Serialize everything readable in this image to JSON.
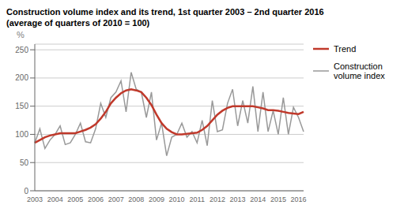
{
  "chart_data": {
    "type": "line",
    "title": "Construction volume index and its trend, 1st quarter 2003 – 2nd quarter 2016",
    "subtitle": "(average of quarters of 2010 = 100)",
    "y_label": "%",
    "categories": [
      "2003",
      null,
      null,
      null,
      "2004",
      null,
      null,
      null,
      "2005",
      null,
      null,
      null,
      "2006",
      null,
      null,
      null,
      "2007",
      null,
      null,
      null,
      "2008",
      null,
      null,
      null,
      "2009",
      null,
      null,
      null,
      "2010",
      null,
      null,
      null,
      "2011",
      null,
      null,
      null,
      "2012",
      null,
      null,
      null,
      "2013",
      null,
      null,
      null,
      "2014",
      null,
      null,
      null,
      "2015",
      null,
      null,
      null,
      "2016",
      null
    ],
    "series": [
      {
        "name": "Trend",
        "color": "#c0392b",
        "values": [
          85,
          90,
          95,
          98,
          100,
          102,
          102,
          102,
          102,
          105,
          108,
          112,
          118,
          128,
          140,
          155,
          165,
          173,
          178,
          180,
          178,
          175,
          165,
          152,
          135,
          120,
          110,
          104,
          100,
          100,
          101,
          102,
          103,
          108,
          115,
          125,
          135,
          142,
          147,
          150,
          150,
          150,
          150,
          150,
          148,
          146,
          143,
          143,
          142,
          140,
          138,
          137,
          136,
          140
        ]
      },
      {
        "name": "Construction\nvolume index",
        "color": "#999999",
        "values": [
          85,
          110,
          75,
          90,
          100,
          115,
          82,
          85,
          100,
          120,
          87,
          85,
          110,
          155,
          130,
          165,
          175,
          195,
          140,
          210,
          180,
          175,
          130,
          175,
          90,
          120,
          62,
          95,
          100,
          120,
          95,
          105,
          85,
          125,
          80,
          160,
          105,
          108,
          155,
          180,
          115,
          160,
          120,
          185,
          105,
          175,
          105,
          142,
          100,
          165,
          100,
          148,
          130,
          105
        ]
      }
    ],
    "ylim": [
      0,
      260
    ],
    "yticks": [
      0,
      50,
      100,
      150,
      200,
      250
    ],
    "grid": true,
    "legend": "right"
  }
}
